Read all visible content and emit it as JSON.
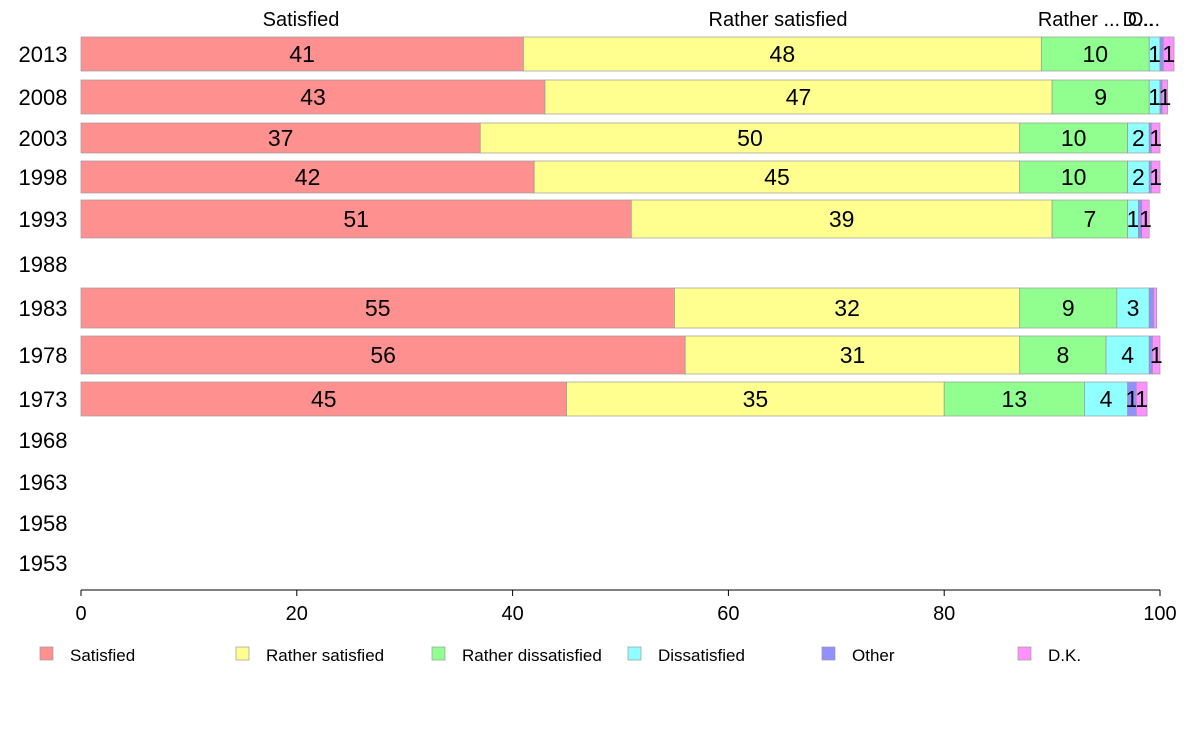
{
  "chart_data": {
    "type": "bar",
    "orientation": "horizontal",
    "stacked": true,
    "categories": [
      "2013",
      "2008",
      "2003",
      "1998",
      "1993",
      "1988",
      "1983",
      "1978",
      "1973",
      "1968",
      "1963",
      "1958",
      "1953"
    ],
    "xlim": [
      0,
      100
    ],
    "x_ticks": [
      0,
      20,
      40,
      60,
      80,
      100
    ],
    "grid": false,
    "legend_position": "bottom",
    "top_labels": [
      "Satisfied",
      "Rather satisfied",
      "Rather ...",
      "D...",
      "O..."
    ],
    "series": [
      {
        "name": "Satisfied",
        "color": "#ff9090",
        "values": [
          41,
          43,
          37,
          42,
          51,
          null,
          55,
          56,
          45,
          null,
          null,
          null,
          null
        ]
      },
      {
        "name": "Rather satisfied",
        "color": "#ffff90",
        "values": [
          48,
          47,
          50,
          45,
          39,
          null,
          32,
          31,
          35,
          null,
          null,
          null,
          null
        ]
      },
      {
        "name": "Rather dissatisfied",
        "color": "#90ff90",
        "values": [
          10,
          9,
          10,
          10,
          7,
          null,
          9,
          8,
          13,
          null,
          null,
          null,
          null
        ]
      },
      {
        "name": "Dissatisfied",
        "color": "#90ffff",
        "values": [
          1,
          1,
          2,
          2,
          1,
          null,
          3,
          4,
          4,
          null,
          null,
          null,
          null
        ]
      },
      {
        "name": "Other",
        "color": "#9090ff",
        "values": [
          0.3,
          0.2,
          0.2,
          0.2,
          0.3,
          null,
          0.4,
          0.3,
          0.8,
          null,
          null,
          null,
          null
        ]
      },
      {
        "name": "D.K.",
        "color": "#ff90ff",
        "values": [
          1,
          0.5,
          0.8,
          0.8,
          0.7,
          null,
          0.3,
          0.7,
          1,
          null,
          null,
          null,
          null
        ]
      }
    ],
    "value_labels": [
      [
        "41",
        "48",
        "10",
        "1",
        "",
        "1"
      ],
      [
        "43",
        "47",
        "9",
        "1",
        "",
        "1"
      ],
      [
        "37",
        "50",
        "10",
        "2",
        "",
        "1"
      ],
      [
        "42",
        "45",
        "10",
        "2",
        "",
        "1"
      ],
      [
        "51",
        "39",
        "7",
        "1",
        "",
        "1"
      ],
      null,
      [
        "55",
        "32",
        "9",
        "3",
        "",
        ""
      ],
      [
        "56",
        "31",
        "8",
        "4",
        "",
        "1"
      ],
      [
        "45",
        "35",
        "13",
        "4",
        "1",
        "1"
      ],
      null,
      null,
      null,
      null
    ]
  }
}
